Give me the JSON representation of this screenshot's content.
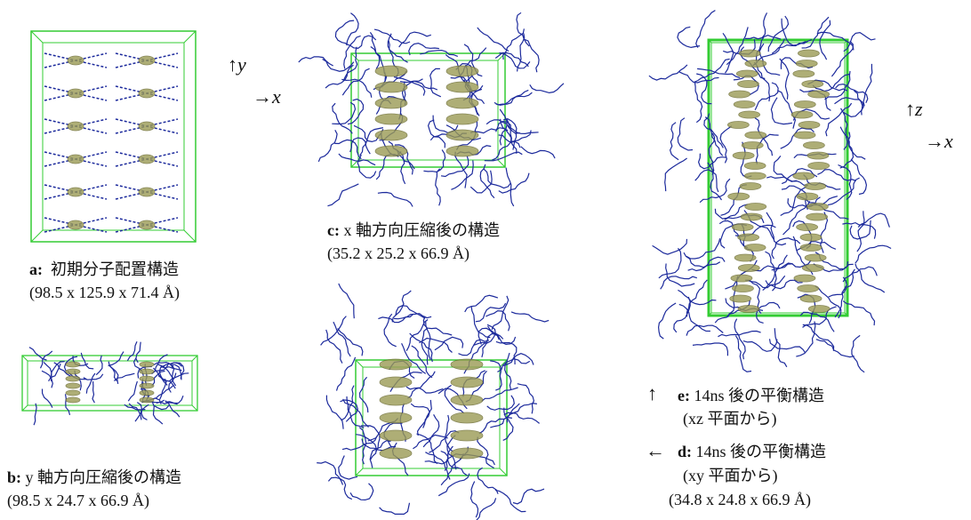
{
  "axes_top": {
    "up": "↑y",
    "right": "→x"
  },
  "axes_right": {
    "up": "↑z",
    "right": "→x"
  },
  "panels": [
    {
      "label": "a:",
      "title": "初期分子配置構造",
      "dims": "(98.5 x 125.9 x 71.4 Å)"
    },
    {
      "label": "b:",
      "title": "y 軸方向圧縮後の構造",
      "dims": "(98.5 x 24.7 x 66.9 Å)"
    },
    {
      "label": "c:",
      "title": "x 軸方向圧縮後の構造",
      "dims": "(35.2 x 25.2 x 66.9 Å)"
    },
    {
      "arrow": "↑",
      "label": "e:",
      "title": "14ns 後の平衡構造",
      "view": "(xz 平面から)"
    },
    {
      "arrow": "←",
      "label": "d:",
      "title": "14ns 後の平衡構造",
      "view": "(xy 平面から)",
      "dims": "(34.8 x 24.8 x 66.9 Å)"
    }
  ]
}
